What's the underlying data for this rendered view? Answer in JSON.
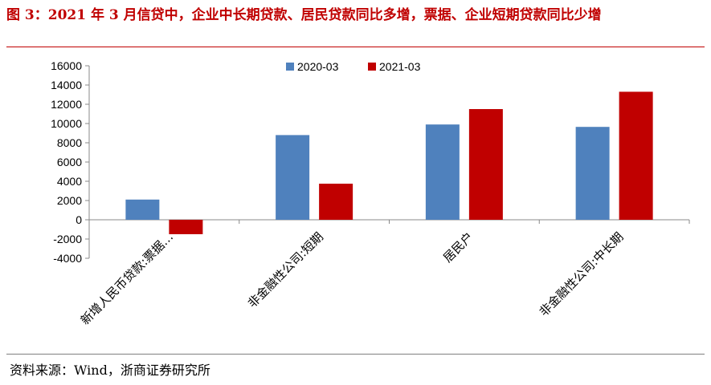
{
  "figure": {
    "title": "图 3：2021 年 3 月信贷中，企业中长期贷款、居民贷款同比多增，票据、企业短期贷款同比少增",
    "source": "资料来源：Wind，浙商证券研究所"
  },
  "chart_data": {
    "type": "bar",
    "categories": [
      "新增人民币贷款:票据…",
      "非金融性公司:短期",
      "居民户",
      "非金融性公司:中长期"
    ],
    "series": [
      {
        "name": "2020-03",
        "color": "#4f81bd",
        "values": [
          2100,
          8800,
          9900,
          9650
        ]
      },
      {
        "name": "2021-03",
        "color": "#c00000",
        "values": [
          -1500,
          3750,
          11500,
          13300
        ]
      }
    ],
    "ylim": [
      -4000,
      16000
    ],
    "yticks": [
      "-4000",
      "-2000",
      "0",
      "2000",
      "4000",
      "6000",
      "8000",
      "10000",
      "12000",
      "14000",
      "16000"
    ],
    "legend_position": "top-center",
    "grid": false
  }
}
